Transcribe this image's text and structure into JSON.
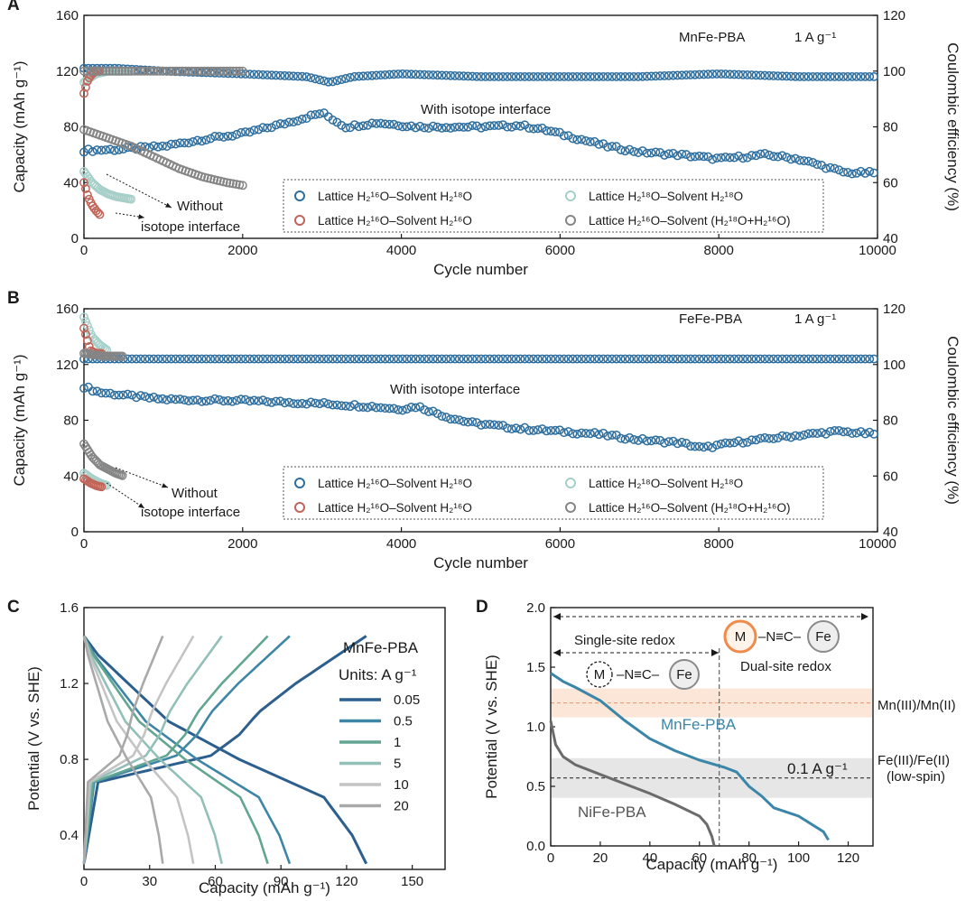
{
  "chart_data": [
    {
      "panel": "A",
      "type": "scatter",
      "material": "MnFe-PBA",
      "rate": "1 A g⁻¹",
      "xlabel": "Cycle number",
      "ylabel": "Capacity (mAh g⁻¹)",
      "y2label": "Coulombic efficiency (%)",
      "xlim": [
        0,
        10000
      ],
      "ylim": [
        0,
        160
      ],
      "y2lim": [
        40,
        120
      ],
      "xticks": [
        "0",
        "2000",
        "4000",
        "6000",
        "8000",
        "10000"
      ],
      "yticks": [
        "0",
        "40",
        "80",
        "120",
        "160"
      ],
      "y2ticks": [
        "40",
        "60",
        "80",
        "100",
        "120"
      ],
      "annotation_with": "With isotope interface",
      "annotation_without": [
        "Without",
        "isotope interface"
      ],
      "legend": [
        "Lattice H₂¹⁶O–Solvent H₂¹⁸O",
        "Lattice H₂¹⁸O–Solvent H₂¹⁸O",
        "Lattice H₂¹⁶O–Solvent H₂¹⁶O",
        "Lattice H₂¹⁶O–Solvent (H₂¹⁸O+H₂¹⁶O)"
      ],
      "series": [
        {
          "name": "Lattice H₂¹⁶O–Solvent H₂¹⁸O",
          "axis": "capacity",
          "color": "#2e6e9e",
          "x": [
            0,
            500,
            1000,
            1500,
            2000,
            2500,
            3000,
            3300,
            3700,
            4200,
            5000,
            5500,
            5800,
            6200,
            6600,
            7000,
            7500,
            8000,
            8600,
            9000,
            9300,
            9600,
            10000
          ],
          "y": [
            63,
            64,
            66,
            71,
            75,
            82,
            90,
            80,
            83,
            80,
            80,
            81,
            78,
            72,
            66,
            62,
            60,
            57,
            60,
            57,
            52,
            47,
            47
          ]
        },
        {
          "name": "Lattice H₂¹⁶O–Solvent H₂¹⁸O (CE)",
          "axis": "ce",
          "color": "#2e6e9e",
          "x": [
            0,
            400,
            1000,
            2000,
            2800,
            3100,
            3400,
            4000,
            5000,
            6000,
            7000,
            8000,
            9000,
            10000
          ],
          "y": [
            101,
            101,
            100,
            99,
            98,
            96,
            98,
            99,
            98,
            98,
            98,
            99,
            98,
            98
          ]
        },
        {
          "name": "Lattice H₂¹⁸O–Solvent H₂¹⁸O",
          "axis": "capacity",
          "color": "#a7cfc9",
          "x": [
            0,
            100,
            200,
            300,
            400,
            500,
            600
          ],
          "y": [
            48,
            40,
            35,
            32,
            30,
            29,
            28
          ]
        },
        {
          "name": "Lattice H₂¹⁸O–Solvent H₂¹⁸O (CE)",
          "axis": "ce",
          "color": "#a7cfc9",
          "x": [
            0,
            150,
            300,
            450,
            600
          ],
          "y": [
            96,
            99,
            100,
            100,
            100
          ]
        },
        {
          "name": "Lattice H₂¹⁶O–Solvent H₂¹⁶O",
          "axis": "capacity",
          "color": "#c0655a",
          "x": [
            0,
            50,
            100,
            150,
            200
          ],
          "y": [
            40,
            30,
            24,
            20,
            17
          ]
        },
        {
          "name": "Lattice H₂¹⁶O–Solvent H₂¹⁶O (CE)",
          "axis": "ce",
          "color": "#c0655a",
          "x": [
            0,
            50,
            100,
            150,
            200
          ],
          "y": [
            92,
            97,
            99,
            100,
            100
          ]
        },
        {
          "name": "Lattice H₂¹⁶O–Solvent (H₂¹⁸O+H₂¹⁶O)",
          "axis": "capacity",
          "color": "#858585",
          "x": [
            0,
            300,
            600,
            900,
            1200,
            1500,
            1800,
            2000
          ],
          "y": [
            78,
            72,
            66,
            58,
            50,
            44,
            40,
            38
          ]
        },
        {
          "name": "Lattice H₂¹⁶O–Solvent (H₂¹⁸O+H₂¹⁶O) (CE)",
          "axis": "ce",
          "color": "#858585",
          "x": [
            0,
            500,
            1000,
            1500,
            2000
          ],
          "y": [
            100,
            100,
            100,
            100,
            100
          ]
        }
      ]
    },
    {
      "panel": "B",
      "type": "scatter",
      "material": "FeFe-PBA",
      "rate": "1 A g⁻¹",
      "xlabel": "Cycle number",
      "ylabel": "Capacity (mAh g⁻¹)",
      "y2label": "Coulombic efficiency (%)",
      "xlim": [
        0,
        10000
      ],
      "ylim": [
        0,
        160
      ],
      "y2lim": [
        40,
        120
      ],
      "xticks": [
        "0",
        "2000",
        "4000",
        "6000",
        "8000",
        "10000"
      ],
      "yticks": [
        "0",
        "40",
        "80",
        "120",
        "160"
      ],
      "y2ticks": [
        "40",
        "60",
        "80",
        "100",
        "120"
      ],
      "annotation_with": "With isotope interface",
      "annotation_without": [
        "Without",
        "isotope interface"
      ],
      "legend": [
        "Lattice H₂¹⁶O–Solvent H₂¹⁸O",
        "Lattice H₂¹⁸O–Solvent H₂¹⁸O",
        "Lattice H₂¹⁶O–Solvent H₂¹⁶O",
        "Lattice H₂¹⁶O–Solvent (H₂¹⁸O+H₂¹⁶O)"
      ],
      "series": [
        {
          "name": "Lattice H₂¹⁶O–Solvent H₂¹⁸O",
          "axis": "capacity",
          "color": "#2e6e9e",
          "x": [
            0,
            200,
            500,
            1000,
            2000,
            3000,
            3600,
            4000,
            4200,
            4600,
            4900,
            5500,
            6000,
            6500,
            7000,
            7500,
            7800,
            8200,
            8800,
            9500,
            10000
          ],
          "y": [
            104,
            100,
            98,
            95,
            94,
            92,
            90,
            88,
            90,
            82,
            78,
            74,
            72,
            70,
            66,
            64,
            60,
            64,
            68,
            72,
            70
          ]
        },
        {
          "name": "Lattice H₂¹⁶O–Solvent H₂¹⁸O (CE)",
          "axis": "ce",
          "color": "#2e6e9e",
          "x": [
            0,
            500,
            1000,
            2000,
            4000,
            6000,
            8000,
            10000
          ],
          "y": [
            102,
            102,
            102,
            102,
            102,
            102,
            102,
            102
          ]
        },
        {
          "name": "Lattice H₂¹⁸O–Solvent H₂¹⁸O",
          "axis": "capacity",
          "color": "#a7cfc9",
          "x": [
            0,
            100,
            200,
            300
          ],
          "y": [
            42,
            38,
            35,
            33
          ]
        },
        {
          "name": "Lattice H₂¹⁸O–Solvent H₂¹⁸O (CE)",
          "axis": "ce",
          "color": "#a7cfc9",
          "x": [
            0,
            100,
            200,
            300
          ],
          "y": [
            117,
            110,
            107,
            105
          ]
        },
        {
          "name": "Lattice H₂¹⁶O–Solvent H₂¹⁶O",
          "axis": "capacity",
          "color": "#c0655a",
          "x": [
            0,
            80,
            160,
            240
          ],
          "y": [
            38,
            35,
            33,
            32
          ]
        },
        {
          "name": "Lattice H₂¹⁶O–Solvent H₂¹⁶O (CE)",
          "axis": "ce",
          "color": "#c0655a",
          "x": [
            0,
            80,
            160,
            240
          ],
          "y": [
            113,
            105,
            104,
            104
          ]
        },
        {
          "name": "Lattice H₂¹⁶O–Solvent (H₂¹⁸O+H₂¹⁶O)",
          "axis": "capacity",
          "color": "#858585",
          "x": [
            0,
            100,
            200,
            300,
            400,
            500
          ],
          "y": [
            63,
            54,
            48,
            45,
            42,
            40
          ]
        },
        {
          "name": "Lattice H₂¹⁶O–Solvent (H₂¹⁸O+H₂¹⁶O) (CE)",
          "axis": "ce",
          "color": "#858585",
          "x": [
            0,
            250,
            500
          ],
          "y": [
            104,
            103,
            103
          ]
        }
      ]
    },
    {
      "panel": "C",
      "type": "line",
      "xlabel": "Capacity (mAh g⁻¹)",
      "ylabel": "Potential (V vs. SHE)",
      "xlim": [
        0,
        165
      ],
      "ylim": [
        0.22,
        1.6
      ],
      "xticks": [
        "0",
        "30",
        "60",
        "90",
        "120",
        "150"
      ],
      "yticks": [
        "0.4",
        "0.8",
        "1.2",
        "1.6"
      ],
      "legend_title": "MnFe-PBA",
      "legend_units": "Units: A g⁻¹",
      "series": [
        {
          "name": "0.05",
          "color": "#2c5f8e",
          "capacity": 129
        },
        {
          "name": "0.5",
          "color": "#3f86a6",
          "capacity": 94
        },
        {
          "name": "1",
          "color": "#62a591",
          "capacity": 84
        },
        {
          "name": "5",
          "color": "#92c0b8",
          "capacity": 63
        },
        {
          "name": "10",
          "color": "#c4c4c4",
          "capacity": 50
        },
        {
          "name": "20",
          "color": "#a9a9a9",
          "capacity": 36
        }
      ]
    },
    {
      "panel": "D",
      "type": "line",
      "xlabel": "Capacity (mAh g⁻¹)",
      "ylabel": "Potential (V vs. SHE)",
      "xlim": [
        0,
        130
      ],
      "ylim": [
        0,
        2.0
      ],
      "xticks": [
        "0",
        "20",
        "40",
        "60",
        "80",
        "100",
        "120"
      ],
      "yticks": [
        "0.0",
        "0.5",
        "1.0",
        "1.5",
        "2.0"
      ],
      "rate_label": "0.1 A g⁻¹",
      "labels": {
        "single_site": "Single-site redox",
        "dual_site": "Dual-site redox",
        "mn_couple": "Mn(III)/Mn(II)",
        "fe_couple": "Fe(III)/Fe(II)",
        "fe_spin": "(low-spin)",
        "metal": "M",
        "linker": "–N≡C–",
        "iron": "Fe"
      },
      "reference_levels": {
        "Mn(III)/Mn(II)": 1.2,
        "Fe(III)/Fe(II)": 0.57
      },
      "divider_capacity": 68,
      "series": [
        {
          "name": "MnFe-PBA",
          "color": "#3b86a8",
          "x": [
            0,
            5,
            10,
            20,
            30,
            40,
            50,
            60,
            70,
            75,
            80,
            85,
            90,
            100,
            110,
            112
          ],
          "y": [
            1.45,
            1.38,
            1.33,
            1.22,
            1.05,
            0.9,
            0.8,
            0.72,
            0.66,
            0.62,
            0.5,
            0.42,
            0.32,
            0.25,
            0.12,
            0.05
          ]
        },
        {
          "name": "NiFe-PBA",
          "color": "#6b6b6b",
          "x": [
            0,
            1,
            2,
            5,
            10,
            20,
            30,
            40,
            50,
            60,
            63,
            65,
            66
          ],
          "y": [
            1.05,
            0.95,
            0.85,
            0.75,
            0.68,
            0.6,
            0.52,
            0.44,
            0.35,
            0.25,
            0.18,
            0.08,
            0.0
          ]
        }
      ]
    }
  ]
}
